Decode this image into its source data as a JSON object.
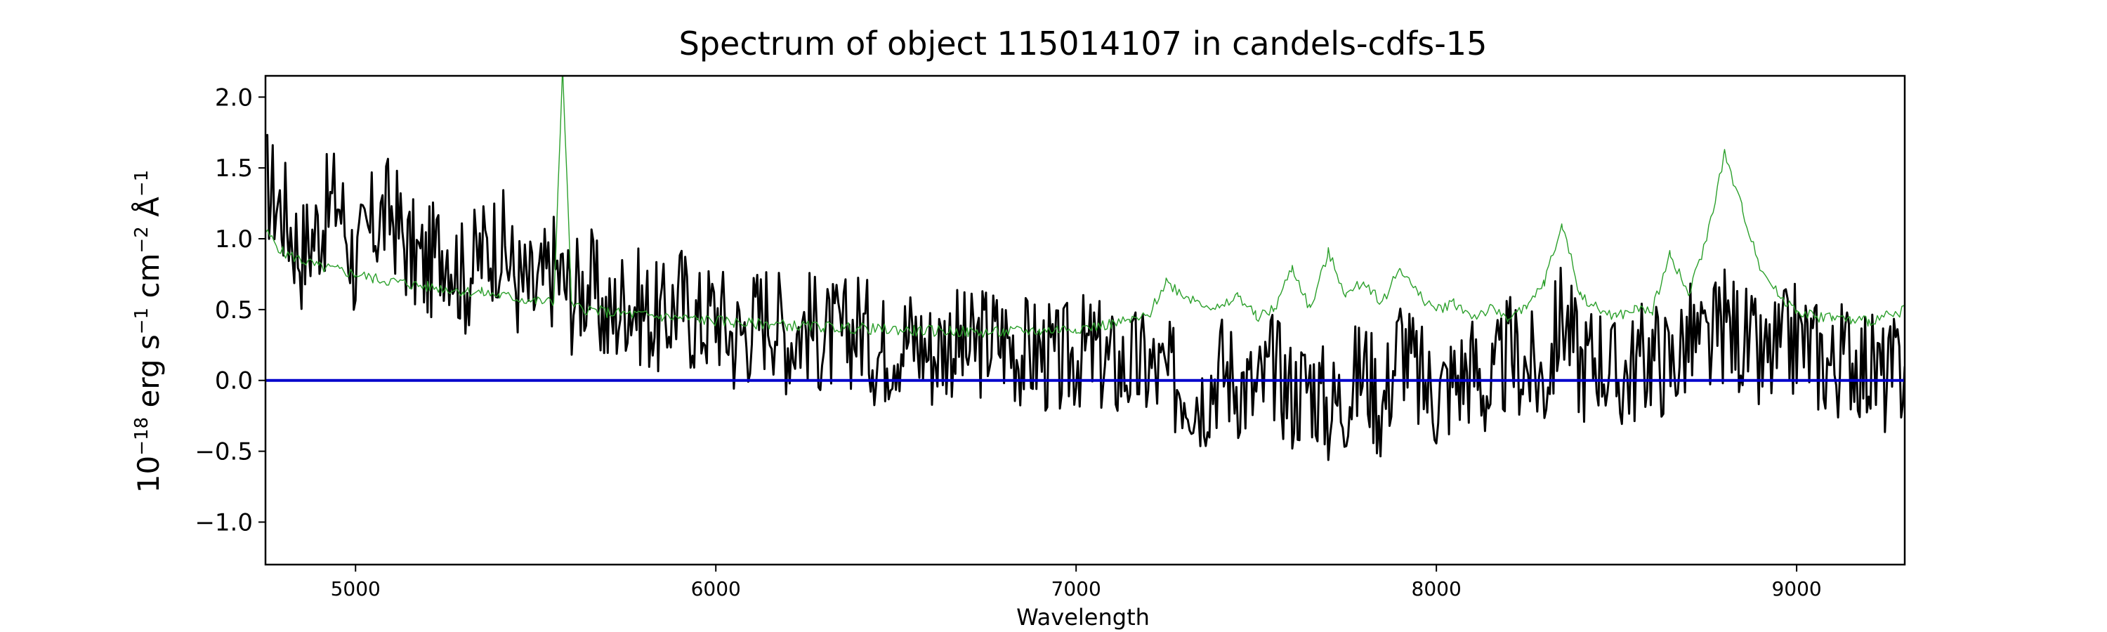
{
  "chart_data": {
    "type": "line",
    "title": "Spectrum of object 115014107 in candels-cdfs-15",
    "xlabel": "Wavelength",
    "ylabel_parts": {
      "base": "10",
      "exp": "−18",
      "rest1": " erg s",
      "exp2": "−1",
      "rest2": " cm",
      "exp3": "−2",
      "rest3": " Å",
      "exp4": "−1"
    },
    "xlim": [
      4750,
      9300
    ],
    "ylim": [
      -1.3,
      2.15
    ],
    "x_ticks": [
      5000,
      6000,
      7000,
      8000,
      9000
    ],
    "y_ticks": [
      -1.0,
      -0.5,
      0.0,
      0.5,
      1.0,
      1.5,
      2.0
    ],
    "x_tick_labels": [
      "5000",
      "6000",
      "7000",
      "8000",
      "9000"
    ],
    "y_tick_labels": [
      "−1.0",
      "−0.5",
      "0.0",
      "0.5",
      "1.0",
      "1.5",
      "2.0"
    ],
    "colors": {
      "flux": "#000000",
      "error": "#2ca02c",
      "zero": "#0000cc"
    },
    "series": [
      {
        "role": "flux",
        "x": [
          4750,
          4800,
          4850,
          4900,
          4950,
          5000,
          5050,
          5100,
          5150,
          5200,
          5250,
          5300,
          5350,
          5400,
          5450,
          5500,
          5550,
          5600,
          5650,
          5700,
          5750,
          5800,
          5850,
          5900,
          5950,
          6000,
          6050,
          6100,
          6150,
          6200,
          6250,
          6300,
          6350,
          6400,
          6450,
          6500,
          6550,
          6600,
          6650,
          6700,
          6750,
          6800,
          6850,
          6900,
          6950,
          7000,
          7050,
          7100,
          7150,
          7200,
          7250,
          7300,
          7350,
          7400,
          7450,
          7500,
          7550,
          7600,
          7650,
          7700,
          7750,
          7800,
          7850,
          7900,
          7950,
          8000,
          8050,
          8100,
          8150,
          8200,
          8250,
          8300,
          8350,
          8400,
          8450,
          8500,
          8550,
          8600,
          8650,
          8700,
          8750,
          8800,
          8850,
          8900,
          8950,
          9000,
          9050,
          9100,
          9150,
          9200,
          9250,
          9300
        ],
        "y": [
          1.4,
          1.2,
          0.9,
          1.1,
          1.3,
          0.8,
          1.1,
          1.2,
          0.9,
          0.8,
          1.0,
          0.7,
          0.9,
          1.0,
          0.7,
          0.6,
          0.8,
          0.6,
          0.7,
          0.4,
          0.6,
          0.5,
          0.4,
          0.6,
          0.4,
          0.5,
          0.3,
          0.4,
          0.5,
          0.3,
          0.4,
          0.3,
          0.3,
          0.4,
          0.2,
          0.3,
          0.3,
          0.2,
          0.3,
          0.2,
          0.3,
          0.3,
          0.2,
          0.2,
          0.1,
          0.2,
          0.2,
          0.1,
          0.1,
          0.1,
          0.0,
          0.0,
          -0.1,
          0.1,
          0.0,
          -0.1,
          0.1,
          -0.1,
          0.0,
          -0.2,
          -0.1,
          0.1,
          -0.2,
          0.3,
          0.0,
          -0.1,
          0.0,
          0.1,
          -0.1,
          0.2,
          0.1,
          0.0,
          0.5,
          0.1,
          0.2,
          0.0,
          0.1,
          0.2,
          0.1,
          0.3,
          0.2,
          0.4,
          0.3,
          0.1,
          0.2,
          0.3,
          0.2,
          0.1,
          0.2,
          0.1,
          0.0,
          0.1
        ]
      },
      {
        "role": "error",
        "x": [
          4750,
          4800,
          4850,
          4900,
          4950,
          5000,
          5050,
          5100,
          5150,
          5200,
          5250,
          5300,
          5350,
          5400,
          5450,
          5500,
          5550,
          5575,
          5600,
          5650,
          5700,
          5750,
          5800,
          5850,
          5900,
          5950,
          6000,
          6050,
          6100,
          6150,
          6200,
          6250,
          6300,
          6350,
          6400,
          6450,
          6500,
          6550,
          6600,
          6650,
          6700,
          6750,
          6800,
          6850,
          6900,
          6950,
          7000,
          7050,
          7100,
          7150,
          7200,
          7250,
          7300,
          7350,
          7400,
          7450,
          7500,
          7550,
          7600,
          7650,
          7700,
          7750,
          7800,
          7850,
          7900,
          7950,
          8000,
          8050,
          8100,
          8150,
          8200,
          8250,
          8300,
          8350,
          8400,
          8450,
          8500,
          8550,
          8600,
          8650,
          8700,
          8750,
          8800,
          8850,
          8900,
          8950,
          9000,
          9050,
          9100,
          9150,
          9200,
          9250,
          9300
        ],
        "y": [
          1.05,
          0.9,
          0.85,
          0.8,
          0.78,
          0.75,
          0.72,
          0.7,
          0.68,
          0.66,
          0.65,
          0.63,
          0.62,
          0.6,
          0.58,
          0.56,
          0.55,
          2.2,
          0.52,
          0.5,
          0.48,
          0.47,
          0.46,
          0.45,
          0.44,
          0.43,
          0.42,
          0.41,
          0.4,
          0.4,
          0.39,
          0.38,
          0.38,
          0.37,
          0.37,
          0.36,
          0.36,
          0.35,
          0.35,
          0.35,
          0.34,
          0.34,
          0.34,
          0.35,
          0.35,
          0.36,
          0.37,
          0.38,
          0.4,
          0.42,
          0.45,
          0.7,
          0.6,
          0.55,
          0.5,
          0.6,
          0.45,
          0.5,
          0.8,
          0.5,
          0.9,
          0.6,
          0.7,
          0.55,
          0.8,
          0.6,
          0.5,
          0.55,
          0.45,
          0.5,
          0.45,
          0.5,
          0.7,
          1.1,
          0.6,
          0.5,
          0.45,
          0.5,
          0.5,
          0.9,
          0.6,
          1.0,
          1.6,
          1.2,
          0.8,
          0.6,
          0.5,
          0.45,
          0.45,
          0.42,
          0.42,
          0.45,
          0.5
        ]
      }
    ],
    "zero_line": 0.0
  }
}
